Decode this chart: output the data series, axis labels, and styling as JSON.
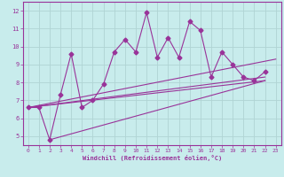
{
  "background_color": "#c8ecec",
  "grid_color": "#b0d4d4",
  "line_color": "#993399",
  "xlim": [
    -0.5,
    23.5
  ],
  "ylim": [
    4.5,
    12.5
  ],
  "yticks": [
    5,
    6,
    7,
    8,
    9,
    10,
    11,
    12
  ],
  "xticks": [
    0,
    1,
    2,
    3,
    4,
    5,
    6,
    7,
    8,
    9,
    10,
    11,
    12,
    13,
    14,
    15,
    16,
    17,
    18,
    19,
    20,
    21,
    22,
    23
  ],
  "xlabel": "Windchill (Refroidissement éolien,°C)",
  "jagged_x": [
    0,
    1,
    2,
    3,
    4,
    5,
    6,
    7,
    8,
    9,
    10,
    11,
    12,
    13,
    14,
    15,
    16,
    17,
    18,
    19,
    20,
    21,
    22
  ],
  "jagged_y": [
    6.6,
    6.6,
    4.8,
    7.3,
    9.6,
    6.6,
    7.0,
    7.9,
    9.7,
    10.4,
    9.7,
    11.9,
    9.4,
    10.5,
    9.4,
    11.4,
    10.9,
    8.3,
    9.7,
    9.0,
    8.3,
    8.1,
    8.6
  ],
  "smooth_lines": [
    {
      "x": [
        0,
        23
      ],
      "y": [
        6.6,
        9.3
      ]
    },
    {
      "x": [
        0,
        22
      ],
      "y": [
        6.6,
        8.3
      ]
    },
    {
      "x": [
        0,
        22
      ],
      "y": [
        6.6,
        8.1
      ]
    },
    {
      "x": [
        2,
        22
      ],
      "y": [
        4.8,
        8.1
      ]
    }
  ]
}
